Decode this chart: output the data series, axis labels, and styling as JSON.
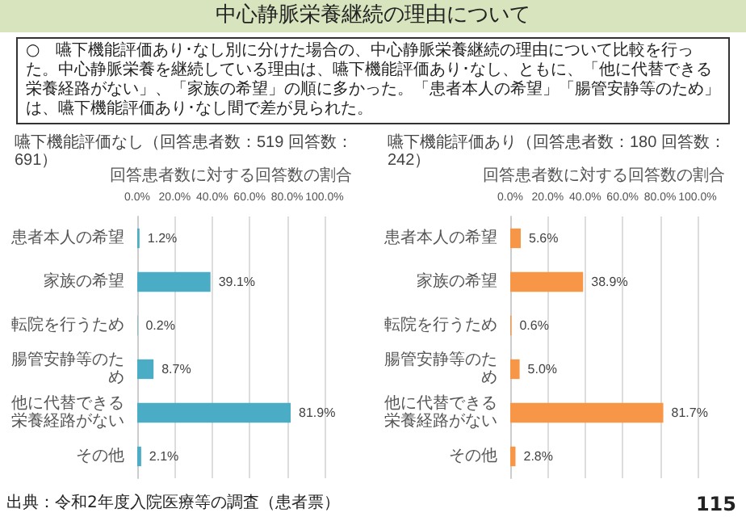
{
  "chart_data": [
    {
      "type": "bar",
      "orientation": "horizontal",
      "title": "嚥下機能評価なし（回答患者数：519 回答数：691）",
      "xlabel": "回答患者数に対する回答数の割合",
      "annotations": [
        "中心静脈栄養継続の理由について",
        "○　嚥下機能評価あり･なし別に分けた場合の、中心静脈栄養継続の理由について比較を行った。中心静脈栄養を継続している理由は、嚥下機能評価あり･なし、ともに、「他に代替できる栄養経路がない」、「家族の希望」の順に多かった。「患者本人の希望」「腸管安静等のため」は、嚥下機能評価あり･なし間で差が見られた。",
        "出典：令和2年度入院医療等の調査（患者票）",
        "115"
      ],
      "categories": [
        "患者本人の希望",
        "家族の希望",
        "転院を行うため",
        "腸管安静等のため",
        "他に代替できる栄養経路がない",
        "その他"
      ],
      "values": [
        1.2,
        39.1,
        0.2,
        8.7,
        81.9,
        2.1
      ],
      "value_labels": [
        "1.2%",
        "39.1%",
        "0.2%",
        "8.7%",
        "81.9%",
        "2.1%"
      ],
      "color": "#4bacc6",
      "xlim": [
        0,
        100
      ],
      "xticks": [
        {
          "value": 0,
          "label": "0.0%"
        },
        {
          "value": 20,
          "label": "20.0%"
        },
        {
          "value": 40,
          "label": "40.0%"
        },
        {
          "value": 60,
          "label": "60.0%"
        },
        {
          "value": 80,
          "label": "80.0%"
        },
        {
          "value": 100,
          "label": "100.0%"
        }
      ],
      "grid": "x"
    },
    {
      "type": "bar",
      "orientation": "horizontal",
      "title": "嚥下機能評価あり（回答患者数：180 回答数：242）",
      "xlabel": "回答患者数に対する回答数の割合",
      "categories": [
        "患者本人の希望",
        "家族の希望",
        "転院を行うため",
        "腸管安静等のため",
        "他に代替できる栄養経路がない",
        "その他"
      ],
      "values": [
        5.6,
        38.9,
        0.6,
        5.0,
        81.7,
        2.8
      ],
      "value_labels": [
        "5.6%",
        "38.9%",
        "0.6%",
        "5.0%",
        "81.7%",
        "2.8%"
      ],
      "color": "#f79646",
      "xlim": [
        0,
        100
      ],
      "xticks": [
        {
          "value": 0,
          "label": "0.0%"
        },
        {
          "value": 20,
          "label": "20.0%"
        },
        {
          "value": 40,
          "label": "40.0%"
        },
        {
          "value": 60,
          "label": "60.0%"
        },
        {
          "value": 80,
          "label": "80.0%"
        },
        {
          "value": 100,
          "label": "100.0%"
        }
      ],
      "grid": "x"
    }
  ]
}
